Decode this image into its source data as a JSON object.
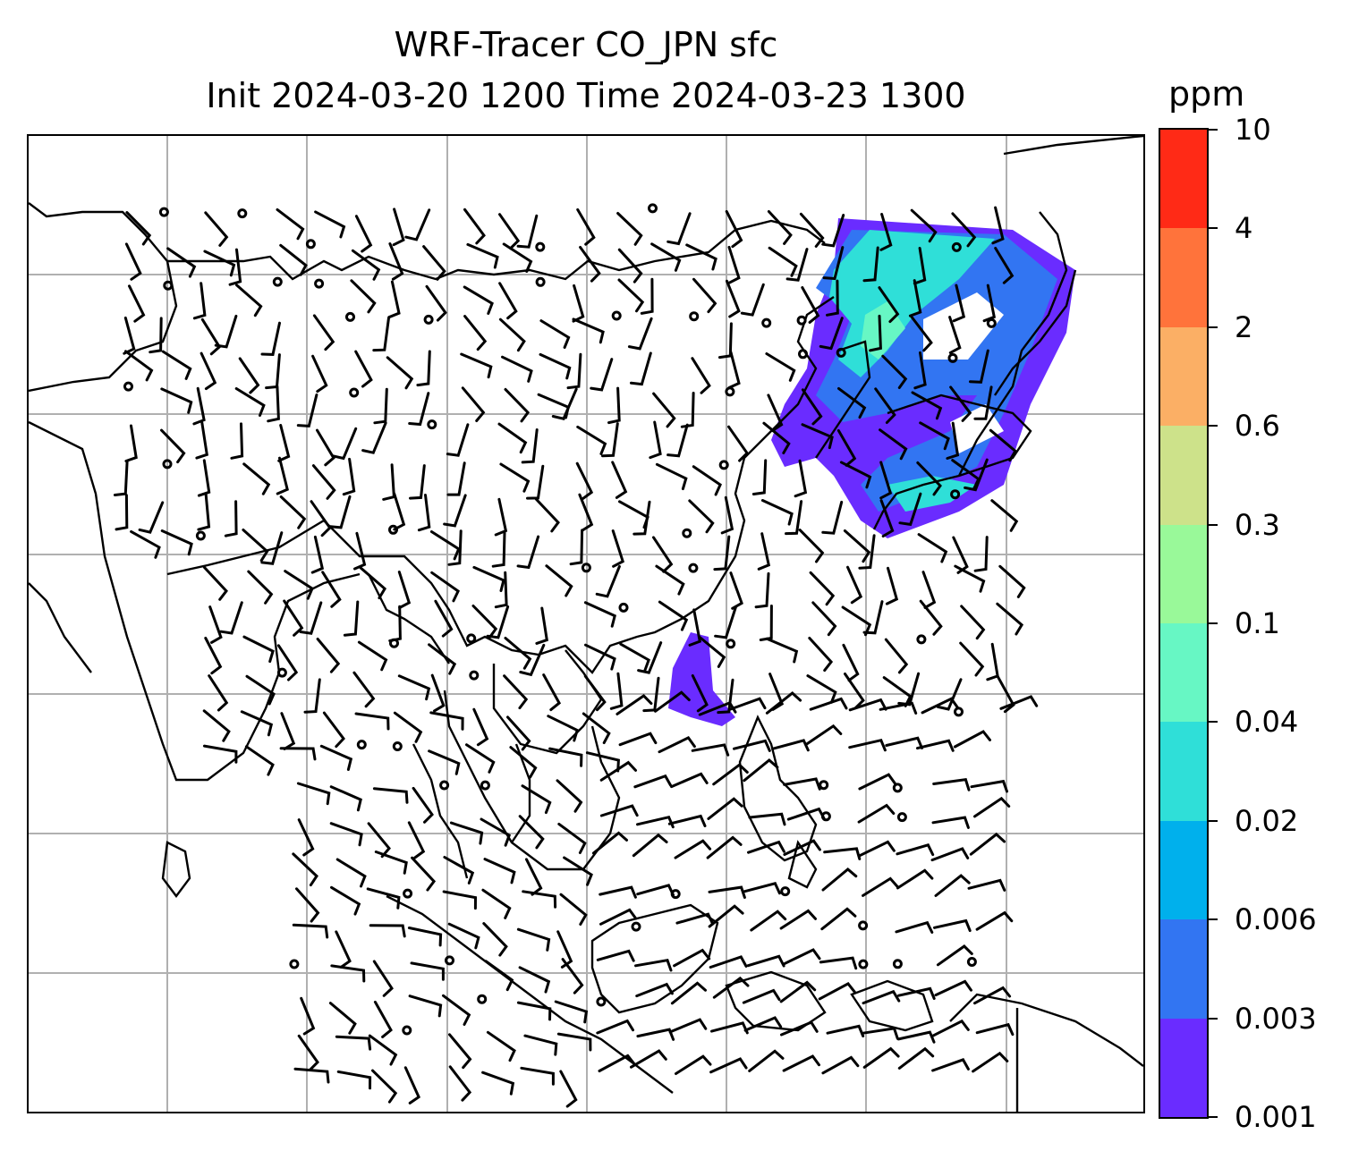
{
  "title": {
    "line1": "WRF-Tracer CO_JPN sfc",
    "line2": "Init 2024-03-20 1200 Time 2024-03-23 1300"
  },
  "colorbar": {
    "unit": "ppm",
    "levels": [
      "0.001",
      "0.003",
      "0.006",
      "0.02",
      "0.04",
      "0.1",
      "0.3",
      "0.6",
      "2",
      "4",
      "10"
    ],
    "colors": [
      "#6a2cff",
      "#3275f2",
      "#00b0ec",
      "#2fdfd8",
      "#67f7c4",
      "#99f999",
      "#cde28a",
      "#fbaf65",
      "#ff733b",
      "#ff2a16"
    ]
  },
  "map": {
    "gridlines": true,
    "plume_colors": {
      "low": "#6a2cff",
      "mid": "#3275f2",
      "high": "#2fdfd8",
      "peak": "#67f7c4"
    }
  }
}
